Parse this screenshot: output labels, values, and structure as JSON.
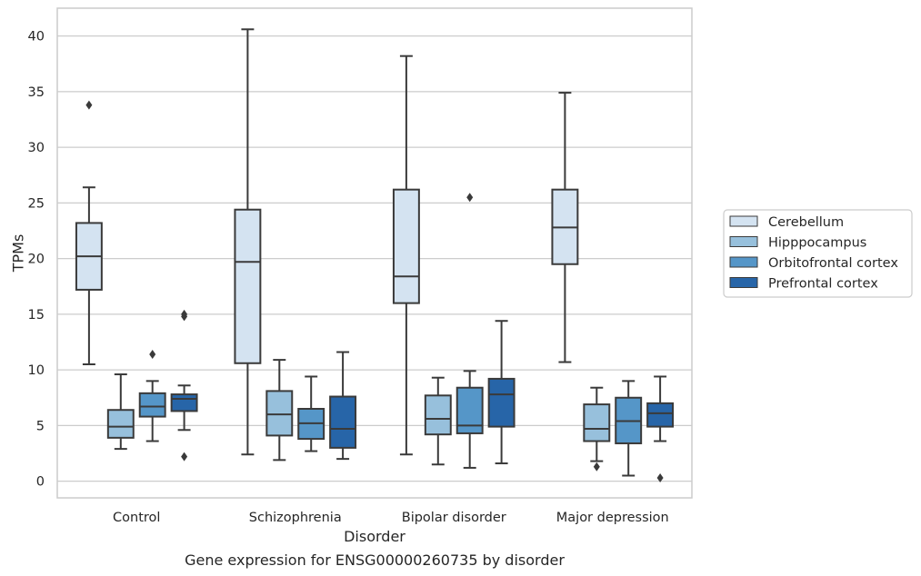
{
  "caption": "Gene expression for ENSG00000260735 by disorder",
  "chart_data": {
    "type": "box",
    "xlabel": "Disorder",
    "ylabel": "TPMs",
    "ylim": [
      -1.5,
      42.5
    ],
    "yticks": [
      0,
      5,
      10,
      15,
      20,
      25,
      30,
      35,
      40
    ],
    "grid": "horizontal",
    "legend_position": "right",
    "categories": [
      "Control",
      "Schizophrenia",
      "Bipolar disorder",
      "Major depression"
    ],
    "series": [
      {
        "name": "Cerebellum",
        "color": "#d4e3f1",
        "boxes": [
          {
            "whislo": 10.5,
            "q1": 17.2,
            "med": 20.2,
            "q3": 23.2,
            "whishi": 26.4,
            "fliers": [
              33.8
            ]
          },
          {
            "whislo": 2.4,
            "q1": 10.6,
            "med": 19.7,
            "q3": 24.4,
            "whishi": 40.6,
            "fliers": []
          },
          {
            "whislo": 2.4,
            "q1": 16.0,
            "med": 18.4,
            "q3": 26.2,
            "whishi": 38.2,
            "fliers": []
          },
          {
            "whislo": 10.7,
            "q1": 19.5,
            "med": 22.8,
            "q3": 26.2,
            "whishi": 34.9,
            "fliers": []
          }
        ]
      },
      {
        "name": "Hipppocampus",
        "color": "#97c0dc",
        "boxes": [
          {
            "whislo": 2.9,
            "q1": 3.9,
            "med": 4.9,
            "q3": 6.4,
            "whishi": 9.6,
            "fliers": []
          },
          {
            "whislo": 1.9,
            "q1": 4.1,
            "med": 6.0,
            "q3": 8.1,
            "whishi": 10.9,
            "fliers": []
          },
          {
            "whislo": 1.5,
            "q1": 4.2,
            "med": 5.6,
            "q3": 7.7,
            "whishi": 9.3,
            "fliers": []
          },
          {
            "whislo": 1.8,
            "q1": 3.6,
            "med": 4.7,
            "q3": 6.9,
            "whishi": 8.4,
            "fliers": [
              1.3
            ]
          }
        ]
      },
      {
        "name": "Orbitofrontal cortex",
        "color": "#5596c8",
        "boxes": [
          {
            "whislo": 3.6,
            "q1": 5.8,
            "med": 6.7,
            "q3": 7.9,
            "whishi": 9.0,
            "fliers": [
              11.4
            ]
          },
          {
            "whislo": 2.7,
            "q1": 3.8,
            "med": 5.2,
            "q3": 6.5,
            "whishi": 9.4,
            "fliers": []
          },
          {
            "whislo": 1.2,
            "q1": 4.3,
            "med": 5.0,
            "q3": 8.4,
            "whishi": 9.9,
            "fliers": [
              25.5
            ]
          },
          {
            "whislo": 0.5,
            "q1": 3.4,
            "med": 5.4,
            "q3": 7.5,
            "whishi": 9.0,
            "fliers": []
          }
        ]
      },
      {
        "name": "Prefrontal cortex",
        "color": "#2765a8",
        "boxes": [
          {
            "whislo": 4.6,
            "q1": 6.3,
            "med": 7.4,
            "q3": 7.8,
            "whishi": 8.6,
            "fliers": [
              14.8,
              15.0,
              2.2
            ]
          },
          {
            "whislo": 2.0,
            "q1": 3.0,
            "med": 4.7,
            "q3": 7.6,
            "whishi": 11.6,
            "fliers": []
          },
          {
            "whislo": 1.6,
            "q1": 4.9,
            "med": 7.8,
            "q3": 9.2,
            "whishi": 14.4,
            "fliers": []
          },
          {
            "whislo": 3.6,
            "q1": 4.9,
            "med": 6.1,
            "q3": 7.0,
            "whishi": 9.4,
            "fliers": [
              0.3
            ]
          }
        ]
      }
    ]
  }
}
